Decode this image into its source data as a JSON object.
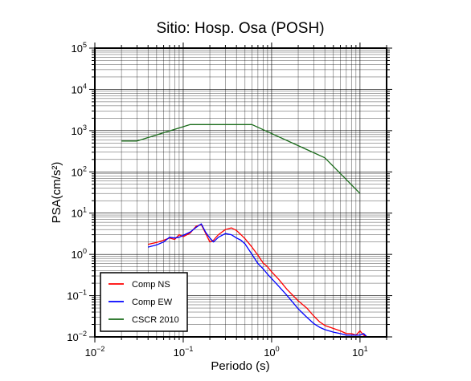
{
  "chart_data": {
    "type": "line",
    "title": "Sitio: Hosp. Osa (POSH)",
    "xlabel": "Periodo (s)",
    "ylabel": "PSA(cm/s²)",
    "x_scale": "log",
    "y_scale": "log",
    "xlim": [
      0.01,
      20
    ],
    "ylim": [
      0.01,
      100000
    ],
    "grid": true,
    "legend_position": "bottom-left",
    "x_ticks": [
      {
        "value": 0.01,
        "base": "10",
        "exp": "−2"
      },
      {
        "value": 0.1,
        "base": "10",
        "exp": "−1"
      },
      {
        "value": 1,
        "base": "10",
        "exp": "0"
      },
      {
        "value": 10,
        "base": "10",
        "exp": "1"
      }
    ],
    "y_ticks": [
      {
        "value": 0.01,
        "base": "10",
        "exp": "−2"
      },
      {
        "value": 0.1,
        "base": "10",
        "exp": "−1"
      },
      {
        "value": 1,
        "base": "10",
        "exp": "0"
      },
      {
        "value": 10,
        "base": "10",
        "exp": "1"
      },
      {
        "value": 100,
        "base": "10",
        "exp": "2"
      },
      {
        "value": 1000,
        "base": "10",
        "exp": "3"
      },
      {
        "value": 10000,
        "base": "10",
        "exp": "4"
      },
      {
        "value": 100000,
        "base": "10",
        "exp": "5"
      }
    ],
    "series": [
      {
        "name": "Comp NS",
        "color": "#ff0000",
        "points": [
          [
            0.04,
            1.75
          ],
          [
            0.05,
            1.95
          ],
          [
            0.06,
            2.2
          ],
          [
            0.07,
            2.5
          ],
          [
            0.08,
            2.3
          ],
          [
            0.09,
            3.0
          ],
          [
            0.1,
            2.7
          ],
          [
            0.12,
            3.3
          ],
          [
            0.14,
            4.8
          ],
          [
            0.16,
            5.3
          ],
          [
            0.18,
            3.2
          ],
          [
            0.2,
            2.0
          ],
          [
            0.22,
            2.2
          ],
          [
            0.25,
            3.0
          ],
          [
            0.3,
            4.0
          ],
          [
            0.35,
            4.4
          ],
          [
            0.4,
            3.8
          ],
          [
            0.45,
            3.0
          ],
          [
            0.5,
            2.4
          ],
          [
            0.6,
            1.5
          ],
          [
            0.7,
            0.95
          ],
          [
            0.8,
            0.62
          ],
          [
            0.9,
            0.5
          ],
          [
            1.0,
            0.38
          ],
          [
            1.2,
            0.25
          ],
          [
            1.5,
            0.14
          ],
          [
            2.0,
            0.075
          ],
          [
            2.5,
            0.05
          ],
          [
            3.0,
            0.032
          ],
          [
            3.5,
            0.023
          ],
          [
            4.0,
            0.019
          ],
          [
            5.0,
            0.016
          ],
          [
            6.0,
            0.014
          ],
          [
            7.0,
            0.012
          ],
          [
            8.0,
            0.012
          ],
          [
            9.0,
            0.011
          ],
          [
            10.0,
            0.014
          ],
          [
            11.0,
            0.011
          ],
          [
            12.0,
            0.01
          ]
        ]
      },
      {
        "name": "Comp EW",
        "color": "#0000ff",
        "points": [
          [
            0.04,
            1.5
          ],
          [
            0.05,
            1.7
          ],
          [
            0.06,
            2.0
          ],
          [
            0.07,
            2.6
          ],
          [
            0.08,
            2.5
          ],
          [
            0.09,
            2.6
          ],
          [
            0.1,
            2.9
          ],
          [
            0.12,
            3.5
          ],
          [
            0.14,
            4.5
          ],
          [
            0.16,
            5.5
          ],
          [
            0.18,
            3.4
          ],
          [
            0.2,
            2.5
          ],
          [
            0.22,
            2.0
          ],
          [
            0.25,
            2.6
          ],
          [
            0.3,
            3.2
          ],
          [
            0.35,
            3.0
          ],
          [
            0.4,
            2.5
          ],
          [
            0.45,
            2.2
          ],
          [
            0.5,
            1.8
          ],
          [
            0.6,
            1.0
          ],
          [
            0.7,
            0.6
          ],
          [
            0.8,
            0.45
          ],
          [
            0.9,
            0.33
          ],
          [
            1.0,
            0.26
          ],
          [
            1.2,
            0.17
          ],
          [
            1.5,
            0.1
          ],
          [
            2.0,
            0.048
          ],
          [
            2.5,
            0.03
          ],
          [
            3.0,
            0.021
          ],
          [
            3.5,
            0.017
          ],
          [
            4.0,
            0.015
          ],
          [
            5.0,
            0.013
          ],
          [
            6.0,
            0.012
          ],
          [
            7.0,
            0.011
          ],
          [
            8.0,
            0.011
          ],
          [
            9.0,
            0.011
          ],
          [
            10.0,
            0.011
          ],
          [
            11.0,
            0.012
          ],
          [
            12.0,
            0.01
          ]
        ]
      },
      {
        "name": "CSCR 2010",
        "color": "#1a6b1a",
        "points": [
          [
            0.02,
            560
          ],
          [
            0.03,
            560
          ],
          [
            0.12,
            1400
          ],
          [
            0.6,
            1400
          ],
          [
            4.0,
            220
          ],
          [
            10.0,
            30
          ]
        ]
      }
    ]
  }
}
